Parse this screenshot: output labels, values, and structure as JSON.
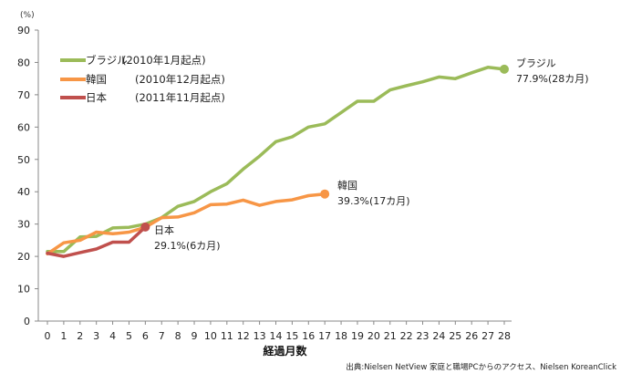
{
  "chart_data": {
    "type": "line",
    "unit_label": "(%)",
    "xlabel": "経過月数",
    "ylabel": "",
    "xlim": [
      0,
      28
    ],
    "ylim": [
      0,
      90
    ],
    "x_ticks": [
      0,
      1,
      2,
      3,
      4,
      5,
      6,
      7,
      8,
      9,
      10,
      11,
      12,
      13,
      14,
      15,
      16,
      17,
      18,
      19,
      20,
      21,
      22,
      23,
      24,
      25,
      26,
      27,
      28
    ],
    "y_ticks": [
      0,
      10,
      20,
      30,
      40,
      50,
      60,
      70,
      80,
      90
    ],
    "grid": false,
    "legend_position": "top-left",
    "series": [
      {
        "key": "brazil",
        "legend_name": "ブラジル",
        "legend_note": "(2010年1月起点)",
        "color": "#9bbb59",
        "x": [
          0,
          1,
          2,
          3,
          4,
          5,
          6,
          7,
          8,
          9,
          10,
          11,
          12,
          13,
          14,
          15,
          16,
          17,
          18,
          19,
          20,
          21,
          22,
          23,
          24,
          25,
          26,
          27,
          28
        ],
        "values": [
          21.5,
          21.5,
          26.0,
          26.2,
          28.8,
          29.0,
          30.0,
          32.0,
          35.5,
          37.0,
          40.0,
          42.5,
          47.0,
          51.0,
          55.5,
          57.0,
          60.0,
          61.0,
          64.5,
          68.0,
          68.0,
          71.5,
          72.8,
          74.0,
          75.5,
          75.0,
          76.8,
          78.5,
          77.9
        ],
        "end_label_name": "ブラジル",
        "end_label_value": "77.9%(28カ月)"
      },
      {
        "key": "korea",
        "legend_name": "韓国",
        "legend_note": "(2010年12月起点)",
        "color": "#f79646",
        "x": [
          0,
          1,
          2,
          3,
          4,
          5,
          6,
          7,
          8,
          9,
          10,
          11,
          12,
          13,
          14,
          15,
          16,
          17
        ],
        "values": [
          20.8,
          24.2,
          25.0,
          27.5,
          27.0,
          27.5,
          29.0,
          32.0,
          32.2,
          33.5,
          36.0,
          36.2,
          37.4,
          35.8,
          37.0,
          37.5,
          38.8,
          39.3
        ],
        "end_label_name": "韓国",
        "end_label_value": "39.3%(17カ月)"
      },
      {
        "key": "japan",
        "legend_name": "日本",
        "legend_note": "(2011年11月起点)",
        "color": "#c0504d",
        "x": [
          0,
          1,
          2,
          3,
          4,
          5,
          6
        ],
        "values": [
          21.0,
          20.0,
          21.2,
          22.3,
          24.4,
          24.4,
          29.1
        ],
        "end_label_name": "日本",
        "end_label_value": "29.1%(6カ月)"
      }
    ],
    "source": "出典:Nielsen NetView 家庭と職場PCからのアクセス、Nielsen KoreanClick"
  }
}
